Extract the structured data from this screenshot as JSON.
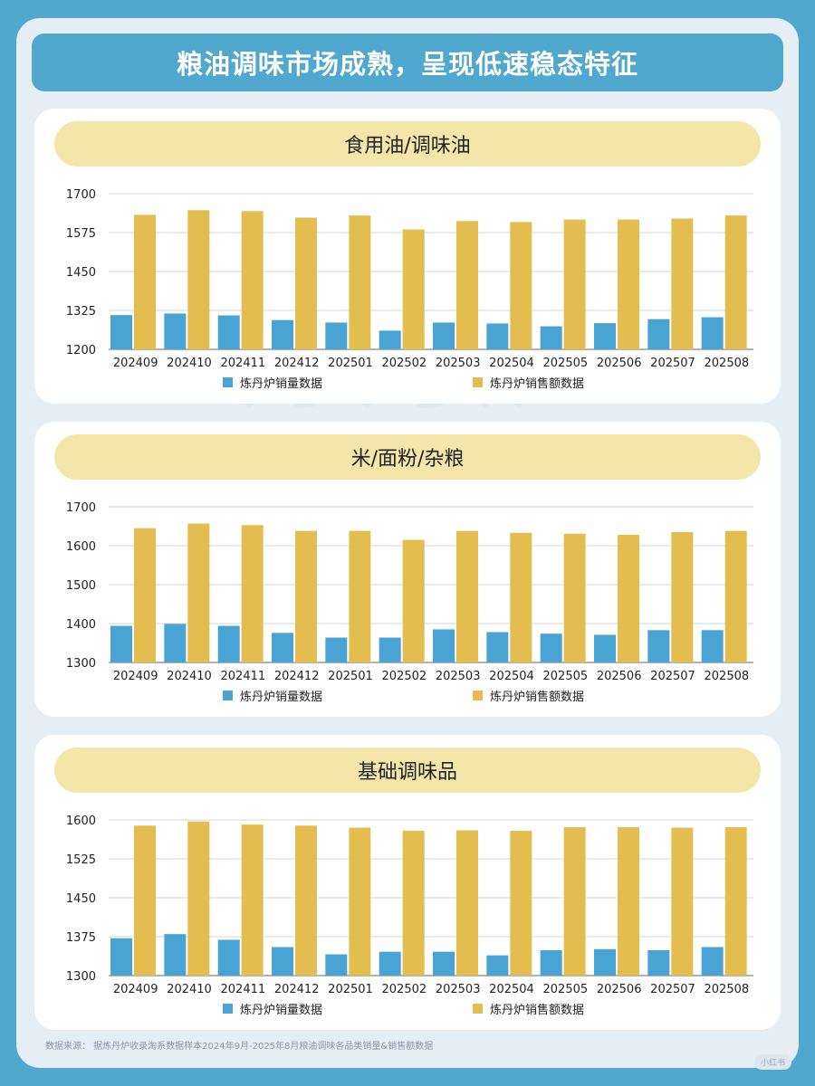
{
  "header": {
    "title": "粮油调味市场成熟，呈现低速稳态特征"
  },
  "watermark": "炼丹炉",
  "footer": {
    "source": "数据来源：  据炼丹炉收录淘系数据样本2024年9月-2025年8月粮油调味各品类销量&销售额数据"
  },
  "corner_mark": "小红书",
  "colors": {
    "volume": "#4aa4d3",
    "sales": "#e3bd4f",
    "grid": "#d6d6d6",
    "axis": "#666666"
  },
  "chart_data": [
    {
      "type": "bar",
      "title": "食用油/调味油",
      "categories": [
        "202409",
        "202410",
        "202411",
        "202412",
        "202501",
        "202502",
        "202503",
        "202504",
        "202505",
        "202506",
        "202507",
        "202508"
      ],
      "ylim": [
        1200,
        1700
      ],
      "yticks": [
        1200,
        1325,
        1450,
        1575,
        1700
      ],
      "grid": true,
      "legend_position": "bottom",
      "series": [
        {
          "name": "炼丹炉销量数据",
          "values": [
            1310,
            1315,
            1309,
            1294,
            1286,
            1260,
            1286,
            1283,
            1274,
            1284,
            1297,
            1303
          ]
        },
        {
          "name": "炼丹炉销售额数据",
          "values": [
            1632,
            1647,
            1644,
            1623,
            1630,
            1585,
            1612,
            1609,
            1617,
            1617,
            1620,
            1630
          ]
        }
      ]
    },
    {
      "type": "bar",
      "title": "米/面粉/杂粮",
      "categories": [
        "202409",
        "202410",
        "202411",
        "202412",
        "202501",
        "202502",
        "202503",
        "202504",
        "202505",
        "202506",
        "202507",
        "202508"
      ],
      "ylim": [
        1300,
        1700
      ],
      "yticks": [
        1300,
        1400,
        1500,
        1600,
        1700
      ],
      "grid": true,
      "legend_position": "bottom",
      "series": [
        {
          "name": "炼丹炉销量数据",
          "values": [
            1394,
            1399,
            1394,
            1376,
            1364,
            1364,
            1385,
            1378,
            1374,
            1371,
            1383,
            1383
          ]
        },
        {
          "name": "炼丹炉销售额数据",
          "values": [
            1645,
            1657,
            1653,
            1638,
            1638,
            1615,
            1638,
            1633,
            1631,
            1628,
            1635,
            1638
          ]
        }
      ]
    },
    {
      "type": "bar",
      "title": "基础调味品",
      "categories": [
        "202409",
        "202410",
        "202411",
        "202412",
        "202501",
        "202502",
        "202503",
        "202504",
        "202505",
        "202506",
        "202507",
        "202508"
      ],
      "ylim": [
        1300,
        1600
      ],
      "yticks": [
        1300,
        1375,
        1450,
        1525,
        1600
      ],
      "grid": true,
      "legend_position": "bottom",
      "series": [
        {
          "name": "炼丹炉销量数据",
          "values": [
            1372,
            1380,
            1369,
            1355,
            1341,
            1346,
            1346,
            1339,
            1349,
            1351,
            1349,
            1355
          ]
        },
        {
          "name": "炼丹炉销售额数据",
          "values": [
            1589,
            1597,
            1591,
            1589,
            1585,
            1579,
            1580,
            1579,
            1586,
            1586,
            1585,
            1586
          ]
        }
      ]
    }
  ]
}
